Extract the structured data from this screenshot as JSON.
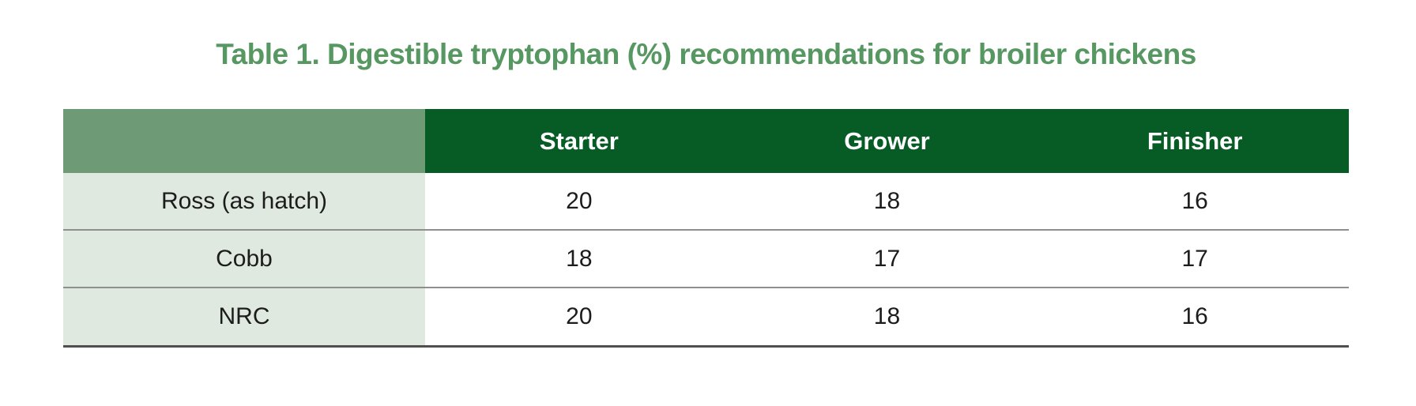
{
  "title": {
    "text": "Table 1. Digestible tryptophan (%) recommendations for broiler chickens"
  },
  "colors": {
    "title_green": "#569762",
    "header_dark_green": "#075c26",
    "header_corner_sage": "#6e9a76",
    "row_label_bg": "#dfe9df",
    "header_text": "#ffffff",
    "body_text": "#1c1c1c",
    "row_divider": "#8f8f8f",
    "bottom_border": "#4f4f4f"
  },
  "table": {
    "columns": [
      "",
      "Starter",
      "Grower",
      "Finisher"
    ],
    "rows": [
      {
        "label": "Ross (as hatch)",
        "values": [
          "20",
          "18",
          "16"
        ]
      },
      {
        "label": "Cobb",
        "values": [
          "18",
          "17",
          "17"
        ]
      },
      {
        "label": "NRC",
        "values": [
          "20",
          "18",
          "16"
        ]
      }
    ]
  },
  "chart_data": {
    "type": "table",
    "title": "Table 1. Digestible tryptophan (%) recommendations for broiler chickens",
    "columns": [
      "Starter",
      "Grower",
      "Finisher"
    ],
    "row_labels": [
      "Ross (as hatch)",
      "Cobb",
      "NRC"
    ],
    "series": [
      {
        "name": "Ross (as hatch)",
        "values": [
          20,
          18,
          16
        ]
      },
      {
        "name": "Cobb",
        "values": [
          18,
          17,
          17
        ]
      },
      {
        "name": "NRC",
        "values": [
          20,
          18,
          16
        ]
      }
    ]
  }
}
